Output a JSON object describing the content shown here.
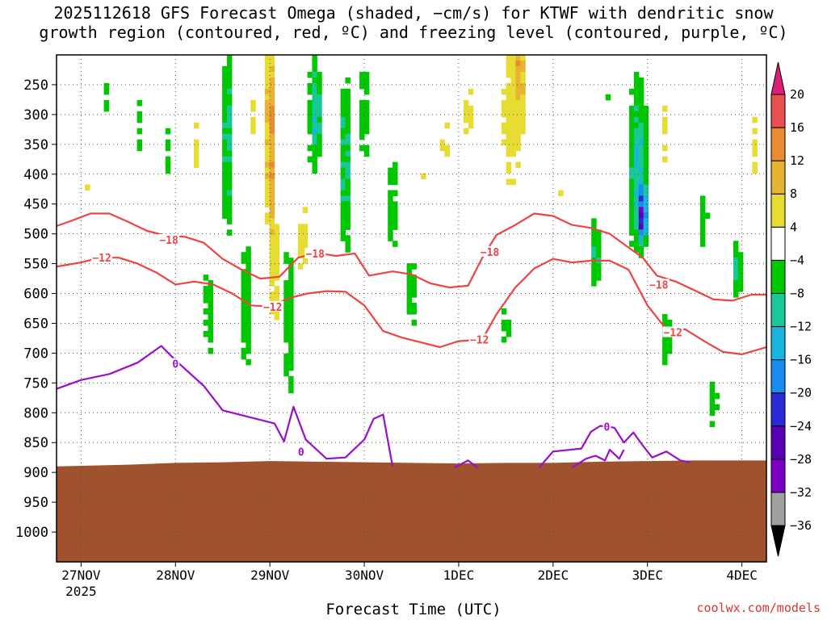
{
  "chart_data": {
    "type": "time-height cross section",
    "title_line1": "2025112618 GFS Forecast Omega (shaded, −cm/s) for KTWF with dendritic snow",
    "title_line2": "growth region (contoured, red, ºC) and freezing level (contoured, purple, ºC)",
    "xlabel": "Forecast Time (UTC)",
    "credit": "coolwx.com/models",
    "year_label": "2025",
    "x_range_days": [
      -0.26,
      7.26
    ],
    "y_range_hpa": [
      200,
      1050
    ],
    "x_ticks": [
      {
        "day": 0,
        "label": "27NOV"
      },
      {
        "day": 1,
        "label": "28NOV"
      },
      {
        "day": 2,
        "label": "29NOV"
      },
      {
        "day": 3,
        "label": "30NOV"
      },
      {
        "day": 4,
        "label": "1DEC"
      },
      {
        "day": 5,
        "label": "2DEC"
      },
      {
        "day": 6,
        "label": "3DEC"
      },
      {
        "day": 7,
        "label": "4DEC"
      }
    ],
    "y_ticks": [
      250,
      300,
      350,
      400,
      450,
      500,
      550,
      600,
      650,
      700,
      750,
      800,
      850,
      900,
      950,
      1000
    ],
    "colorbar": {
      "bounds": [
        -36,
        -32,
        -28,
        -24,
        -20,
        -16,
        -12,
        -8,
        -4,
        4,
        8,
        12,
        16,
        20
      ],
      "labels": [
        "20",
        "16",
        "12",
        "8",
        "4",
        "−4",
        "−8",
        "−12",
        "−16",
        "−20",
        "−24",
        "−28",
        "−32",
        "−36"
      ],
      "colors": [
        "#a0a0a0",
        "#7a00c8",
        "#5a00b4",
        "#2b2bd6",
        "#1a8cf0",
        "#19b4dc",
        "#19c896",
        "#00c800",
        "#ffffff",
        "#e6dc32",
        "#e6b432",
        "#e68c32",
        "#e65050",
        "#dc1e78"
      ]
    },
    "surface_pressure_hpa": [
      {
        "day": -0.26,
        "p": 890
      },
      {
        "day": 0.5,
        "p": 887
      },
      {
        "day": 1.0,
        "p": 884
      },
      {
        "day": 1.5,
        "p": 883
      },
      {
        "day": 2.0,
        "p": 881
      },
      {
        "day": 2.5,
        "p": 882
      },
      {
        "day": 3.0,
        "p": 883
      },
      {
        "day": 3.5,
        "p": 884
      },
      {
        "day": 4.0,
        "p": 885
      },
      {
        "day": 4.5,
        "p": 884
      },
      {
        "day": 5.0,
        "p": 884
      },
      {
        "day": 5.5,
        "p": 882
      },
      {
        "day": 6.0,
        "p": 881
      },
      {
        "day": 6.5,
        "p": 880
      },
      {
        "day": 7.0,
        "p": 880
      },
      {
        "day": 7.26,
        "p": 880
      }
    ],
    "contours": [
      {
        "name": "-18C",
        "label": "−18",
        "color": "#ee4444",
        "label_at": [
          {
            "day": 0.93,
            "p": 510
          },
          {
            "day": 2.48,
            "p": 533
          },
          {
            "day": 4.33,
            "p": 530
          },
          {
            "day": 6.12,
            "p": 585
          }
        ],
        "points": [
          [
            -0.26,
            487
          ],
          [
            -0.1,
            478
          ],
          [
            0.1,
            466
          ],
          [
            0.3,
            466
          ],
          [
            0.5,
            480
          ],
          [
            0.7,
            495
          ],
          [
            0.9,
            503
          ],
          [
            1.1,
            505
          ],
          [
            1.3,
            515
          ],
          [
            1.5,
            542
          ],
          [
            1.7,
            560
          ],
          [
            1.9,
            575
          ],
          [
            2.1,
            572
          ],
          [
            2.3,
            540
          ],
          [
            2.5,
            532
          ],
          [
            2.7,
            537
          ],
          [
            2.9,
            533
          ],
          [
            3.05,
            570
          ],
          [
            3.3,
            563
          ],
          [
            3.5,
            568
          ],
          [
            3.7,
            583
          ],
          [
            3.9,
            590
          ],
          [
            4.1,
            587
          ],
          [
            4.25,
            540
          ],
          [
            4.4,
            502
          ],
          [
            4.6,
            485
          ],
          [
            4.8,
            466
          ],
          [
            5.0,
            470
          ],
          [
            5.2,
            485
          ],
          [
            5.4,
            490
          ],
          [
            5.6,
            500
          ],
          [
            5.8,
            523
          ],
          [
            5.95,
            540
          ],
          [
            6.1,
            570
          ],
          [
            6.3,
            580
          ],
          [
            6.5,
            595
          ],
          [
            6.7,
            610
          ],
          [
            6.9,
            612
          ],
          [
            7.1,
            602
          ],
          [
            7.26,
            602
          ]
        ]
      },
      {
        "name": "-12C",
        "label": "−12",
        "color": "#ee4444",
        "label_at": [
          {
            "day": 0.22,
            "p": 540
          },
          {
            "day": 2.03,
            "p": 622
          },
          {
            "day": 4.22,
            "p": 677
          },
          {
            "day": 6.27,
            "p": 665
          }
        ],
        "points": [
          [
            -0.26,
            555
          ],
          [
            0.0,
            548
          ],
          [
            0.2,
            540
          ],
          [
            0.4,
            540
          ],
          [
            0.6,
            550
          ],
          [
            0.8,
            565
          ],
          [
            1.0,
            585
          ],
          [
            1.2,
            580
          ],
          [
            1.4,
            585
          ],
          [
            1.6,
            600
          ],
          [
            1.8,
            620
          ],
          [
            2.0,
            622
          ],
          [
            2.2,
            608
          ],
          [
            2.4,
            600
          ],
          [
            2.6,
            596
          ],
          [
            2.8,
            597
          ],
          [
            3.0,
            620
          ],
          [
            3.2,
            663
          ],
          [
            3.4,
            674
          ],
          [
            3.6,
            682
          ],
          [
            3.8,
            690
          ],
          [
            4.0,
            680
          ],
          [
            4.25,
            677
          ],
          [
            4.4,
            635
          ],
          [
            4.6,
            590
          ],
          [
            4.8,
            558
          ],
          [
            5.0,
            542
          ],
          [
            5.2,
            548
          ],
          [
            5.4,
            545
          ],
          [
            5.6,
            545
          ],
          [
            5.8,
            560
          ],
          [
            6.0,
            620
          ],
          [
            6.2,
            660
          ],
          [
            6.4,
            660
          ],
          [
            6.6,
            680
          ],
          [
            6.8,
            698
          ],
          [
            7.0,
            702
          ],
          [
            7.26,
            690
          ]
        ]
      },
      {
        "name": "0C",
        "label": "0",
        "color": "#9a0fc9",
        "label_at": [
          {
            "day": 1.0,
            "p": 718
          },
          {
            "day": 2.33,
            "p": 865
          },
          {
            "day": 5.57,
            "p": 823
          }
        ],
        "points": [
          [
            -0.26,
            760
          ],
          [
            0.0,
            745
          ],
          [
            0.3,
            735
          ],
          [
            0.6,
            716
          ],
          [
            0.85,
            688
          ],
          [
            1.0,
            712
          ],
          [
            1.3,
            755
          ],
          [
            1.5,
            796
          ],
          [
            1.8,
            808
          ],
          [
            2.05,
            818
          ],
          [
            2.15,
            848
          ],
          [
            2.25,
            790
          ],
          [
            2.38,
            845
          ],
          [
            2.6,
            877
          ],
          [
            2.8,
            875
          ],
          [
            3.0,
            845
          ],
          [
            3.1,
            810
          ],
          [
            3.2,
            803
          ],
          [
            3.3,
            890
          ]
        ],
        "extra_segments": [
          [
            [
              3.95,
              892
            ],
            [
              4.1,
              880
            ],
            [
              4.2,
              892
            ]
          ],
          [
            [
              4.85,
              892
            ],
            [
              5.0,
              865
            ],
            [
              5.3,
              860
            ],
            [
              5.4,
              832
            ],
            [
              5.5,
              822
            ],
            [
              5.65,
              825
            ],
            [
              5.75,
              850
            ],
            [
              5.85,
              833
            ],
            [
              5.95,
              855
            ],
            [
              6.05,
              875
            ],
            [
              6.2,
              865
            ],
            [
              6.35,
              880
            ],
            [
              6.45,
              883
            ]
          ],
          [
            [
              5.2,
              892
            ],
            [
              5.35,
              877
            ],
            [
              5.45,
              872
            ],
            [
              5.55,
              880
            ],
            [
              5.6,
              862
            ],
            [
              5.7,
              877
            ],
            [
              5.75,
              862
            ]
          ]
        ]
      }
    ],
    "omega_blobs": [
      {
        "day": 0.1,
        "p": 420,
        "sw": 0.06,
        "sp": 45,
        "value": 5
      },
      {
        "day": 0.25,
        "p": 270,
        "sw": 0.05,
        "sp": 50,
        "value": -5
      },
      {
        "day": 0.6,
        "p": 320,
        "sw": 0.05,
        "sp": 70,
        "value": -5
      },
      {
        "day": 0.9,
        "p": 350,
        "sw": 0.04,
        "sp": 80,
        "value": -6
      },
      {
        "day": 1.2,
        "p": 350,
        "sw": 0.05,
        "sp": 90,
        "value": 5
      },
      {
        "day": 1.35,
        "p": 620,
        "sw": 0.06,
        "sp": 110,
        "value": -6
      },
      {
        "day": 1.55,
        "p": 350,
        "sw": 0.06,
        "sp": 160,
        "value": -10
      },
      {
        "day": 1.75,
        "p": 620,
        "sw": 0.06,
        "sp": 130,
        "value": -7
      },
      {
        "day": 1.8,
        "p": 320,
        "sw": 0.05,
        "sp": 90,
        "value": 5
      },
      {
        "day": 2.0,
        "p": 330,
        "sw": 0.035,
        "sp": 150,
        "value": 17
      },
      {
        "day": 2.05,
        "p": 560,
        "sw": 0.05,
        "sp": 160,
        "value": 6
      },
      {
        "day": 2.2,
        "p": 650,
        "sw": 0.05,
        "sp": 180,
        "value": -7
      },
      {
        "day": 2.35,
        "p": 520,
        "sw": 0.05,
        "sp": 100,
        "value": 6
      },
      {
        "day": 2.45,
        "p": 300,
        "sw": 0.05,
        "sp": 140,
        "value": -7
      },
      {
        "day": 2.5,
        "p": 300,
        "sw": 0.025,
        "sp": 70,
        "value": -20
      },
      {
        "day": 2.8,
        "p": 380,
        "sw": 0.06,
        "sp": 160,
        "value": -10
      },
      {
        "day": 3.0,
        "p": 300,
        "sw": 0.05,
        "sp": 140,
        "value": -6
      },
      {
        "day": 3.3,
        "p": 450,
        "sw": 0.05,
        "sp": 150,
        "value": -6
      },
      {
        "day": 3.5,
        "p": 600,
        "sw": 0.05,
        "sp": 110,
        "value": -6
      },
      {
        "day": 3.6,
        "p": 400,
        "sw": 0.04,
        "sp": 60,
        "value": 5
      },
      {
        "day": 3.85,
        "p": 350,
        "sw": 0.1,
        "sp": 60,
        "value": 5
      },
      {
        "day": 4.1,
        "p": 300,
        "sw": 0.07,
        "sp": 90,
        "value": 5
      },
      {
        "day": 4.5,
        "p": 650,
        "sw": 0.05,
        "sp": 60,
        "value": -6
      },
      {
        "day": 4.55,
        "p": 300,
        "sw": 0.15,
        "sp": 160,
        "value": 6
      },
      {
        "day": 4.65,
        "p": 210,
        "sw": 0.05,
        "sp": 80,
        "value": 9
      },
      {
        "day": 5.1,
        "p": 420,
        "sw": 0.05,
        "sp": 80,
        "value": 5
      },
      {
        "day": 5.35,
        "p": 225,
        "sw": 0.04,
        "sp": 40,
        "value": 5
      },
      {
        "day": 5.45,
        "p": 530,
        "sw": 0.05,
        "sp": 60,
        "value": -10
      },
      {
        "day": 5.6,
        "p": 260,
        "sw": 0.04,
        "sp": 40,
        "value": -6
      },
      {
        "day": 5.9,
        "p": 390,
        "sw": 0.1,
        "sp": 150,
        "value": -12
      },
      {
        "day": 5.95,
        "p": 470,
        "sw": 0.035,
        "sp": 35,
        "value": -28
      },
      {
        "day": 6.2,
        "p": 330,
        "sw": 0.05,
        "sp": 90,
        "value": 5
      },
      {
        "day": 6.2,
        "p": 680,
        "sw": 0.06,
        "sp": 70,
        "value": -6
      },
      {
        "day": 6.6,
        "p": 480,
        "sw": 0.05,
        "sp": 70,
        "value": -6
      },
      {
        "day": 6.7,
        "p": 780,
        "sw": 0.06,
        "sp": 60,
        "value": -6
      },
      {
        "day": 6.95,
        "p": 560,
        "sw": 0.04,
        "sp": 50,
        "value": -12
      },
      {
        "day": 7.15,
        "p": 350,
        "sw": 0.06,
        "sp": 90,
        "value": 5
      }
    ]
  }
}
